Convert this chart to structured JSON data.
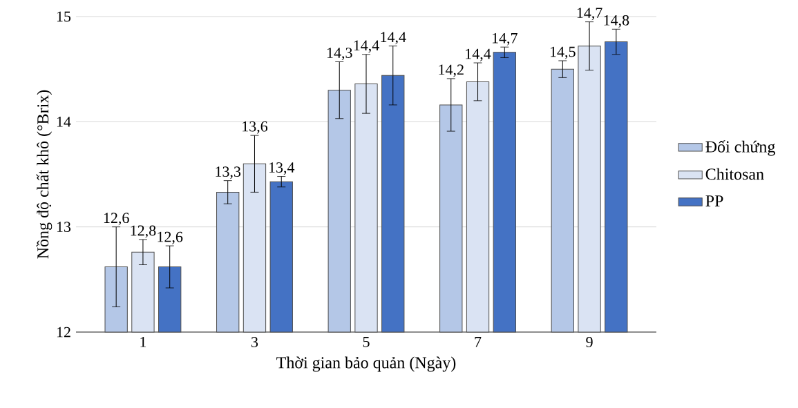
{
  "chart_data": {
    "type": "bar",
    "xlabel": "Thời  gian bảo quản (Ngày)",
    "ylabel": "Nồng độ chất khô (°Brix)",
    "categories": [
      "1",
      "3",
      "5",
      "7",
      "9"
    ],
    "series": [
      {
        "name": "Đối chứng",
        "color": "#b4c7e7",
        "values": [
          12.62,
          13.33,
          14.3,
          14.16,
          14.5
        ],
        "errors": [
          0.38,
          0.11,
          0.27,
          0.25,
          0.08
        ],
        "value_labels": [
          "12,6",
          "13,3",
          "14,3",
          "14,2",
          "14,5"
        ]
      },
      {
        "name": "Chitosan",
        "color": "#dae3f3",
        "values": [
          12.76,
          13.6,
          14.36,
          14.38,
          14.72
        ],
        "errors": [
          0.12,
          0.27,
          0.28,
          0.18,
          0.23
        ],
        "value_labels": [
          "12,8",
          "13,6",
          "14,4",
          "14,4",
          "14,7"
        ]
      },
      {
        "name": "PP",
        "color": "#4472c4",
        "values": [
          12.62,
          13.43,
          14.44,
          14.66,
          14.76
        ],
        "errors": [
          0.2,
          0.05,
          0.28,
          0.05,
          0.12
        ],
        "value_labels": [
          "12,6",
          "13,4",
          "14,4",
          "14,7",
          "14,8"
        ]
      }
    ],
    "ylim": [
      12,
      15
    ],
    "yticks": [
      12,
      13,
      14,
      15
    ],
    "grid": "y",
    "legend": "right"
  }
}
